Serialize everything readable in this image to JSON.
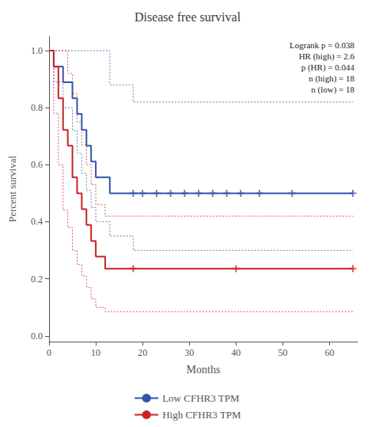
{
  "chart_data": {
    "type": "step",
    "title": "Disease free survival",
    "x_label": "Months",
    "y_label": "Percent survival",
    "xlim": [
      0,
      66
    ],
    "ylim": [
      -0.02,
      1.05
    ],
    "xticks": [
      0,
      10,
      20,
      30,
      40,
      50,
      60
    ],
    "yticks": [
      {
        "value": 0.0,
        "label": "0.0"
      },
      0.2,
      0.4,
      0.6,
      0.8,
      {
        "value": 1.0,
        "label": "1.0"
      }
    ],
    "grid": false,
    "legend": "bottom",
    "annotations": [
      "Logrank p = 0.038",
      "HR (high) = 2.6",
      "p (HR) = 0.044",
      "n (high) = 18",
      "n (low) = 18"
    ],
    "series": [
      {
        "type": "step",
        "color": "#3355aa",
        "line_style": "dotted",
        "x": [
          0,
          1,
          3,
          5,
          6,
          7,
          8,
          9,
          10,
          13,
          18,
          65
        ],
        "values": [
          1.0,
          1.0,
          1.0,
          1.0,
          1.0,
          1.0,
          1.0,
          1.0,
          1.0,
          0.88,
          0.82,
          0.82
        ]
      },
      {
        "type": "step",
        "color": "#3355aa",
        "line_style": "dotted",
        "x": [
          0,
          1,
          3,
          5,
          6,
          7,
          8,
          9,
          10,
          13,
          18,
          65
        ],
        "values": [
          1.0,
          0.89,
          0.8,
          0.72,
          0.64,
          0.57,
          0.51,
          0.45,
          0.4,
          0.35,
          0.3,
          0.3
        ]
      },
      {
        "type": "step",
        "color": "#cc2222",
        "line_style": "dotted",
        "x": [
          0,
          1,
          2,
          3,
          4,
          5,
          6,
          7,
          8,
          9,
          10,
          12,
          65
        ],
        "values": [
          1.0,
          1.0,
          1.0,
          1.0,
          0.92,
          0.85,
          0.75,
          0.67,
          0.6,
          0.53,
          0.46,
          0.42,
          0.42
        ]
      },
      {
        "type": "step",
        "color": "#cc2222",
        "line_style": "dotted",
        "x": [
          0,
          1,
          2,
          3,
          4,
          5,
          6,
          7,
          8,
          9,
          10,
          12,
          65
        ],
        "values": [
          1.0,
          0.78,
          0.6,
          0.44,
          0.38,
          0.3,
          0.25,
          0.21,
          0.17,
          0.13,
          0.1,
          0.085,
          0.085
        ]
      },
      {
        "name": "Low CFHR3 TPM",
        "type": "step",
        "color": "#3355aa",
        "line_style": "solid",
        "x": [
          0,
          1,
          1,
          3,
          3,
          5,
          5,
          6,
          6,
          7,
          7,
          8,
          8,
          9,
          9,
          10,
          10,
          13,
          13,
          18,
          65
        ],
        "values": [
          1.0,
          1.0,
          0.944,
          0.944,
          0.889,
          0.889,
          0.833,
          0.833,
          0.778,
          0.778,
          0.722,
          0.722,
          0.667,
          0.667,
          0.611,
          0.611,
          0.556,
          0.556,
          0.5,
          0.5,
          0.5
        ]
      },
      {
        "name": "High CFHR3 TPM",
        "type": "step",
        "color": "#cc2222",
        "line_style": "solid",
        "x": [
          0,
          1,
          1,
          2,
          2,
          3,
          3,
          4,
          4,
          5,
          5,
          6,
          6,
          7,
          7,
          8,
          8,
          9,
          9,
          10,
          10,
          12,
          12,
          65
        ],
        "values": [
          1.0,
          1.0,
          0.944,
          0.944,
          0.833,
          0.833,
          0.722,
          0.722,
          0.667,
          0.667,
          0.556,
          0.556,
          0.5,
          0.5,
          0.444,
          0.444,
          0.389,
          0.389,
          0.333,
          0.333,
          0.278,
          0.278,
          0.236,
          0.236
        ]
      },
      {
        "type": "scatter",
        "color": "#3355aa",
        "marker": "plus",
        "x": [
          18,
          20,
          23,
          26,
          29,
          32,
          35,
          38,
          41,
          45,
          52,
          65
        ],
        "values": [
          0.5,
          0.5,
          0.5,
          0.5,
          0.5,
          0.5,
          0.5,
          0.5,
          0.5,
          0.5,
          0.5,
          0.5
        ]
      },
      {
        "type": "scatter",
        "color": "#cc2222",
        "marker": "plus",
        "x": [
          18,
          40,
          65
        ],
        "values": [
          0.236,
          0.236,
          0.236
        ]
      }
    ]
  }
}
